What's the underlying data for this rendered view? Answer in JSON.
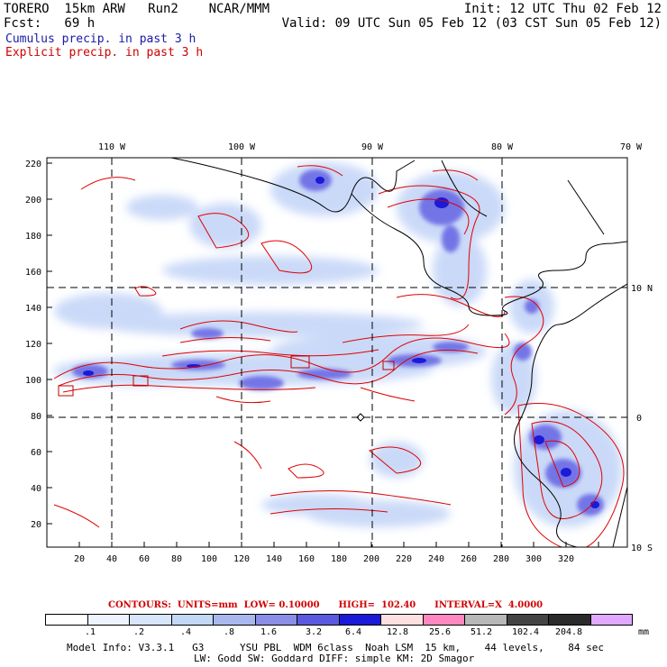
{
  "header": {
    "line1_left": "TORERO  15km ARW   Run2    NCAR/MMM",
    "line1_right": "Init: 12 UTC Thu 02 Feb 12",
    "line2_left": "Fcst:   69 h",
    "line2_right": "Valid: 09 UTC Sun 05 Feb 12 (03 CST Sun 05 Feb 12)",
    "field1": "Cumulus precip. in past 3 h",
    "field2": "Explicit precip. in past 3 h",
    "field1_color": "#1a1aa6",
    "field2_color": "#d00000"
  },
  "map": {
    "top_lon_labels": [
      "110 W",
      "100 W",
      "90 W",
      "80 W",
      "70 W"
    ],
    "right_lat_labels": [
      "10 N",
      "0",
      "10 S"
    ],
    "left_y_ticks": [
      "220",
      "200",
      "180",
      "160",
      "140",
      "120",
      "100",
      "80",
      "60",
      "40",
      "20"
    ],
    "bottom_x_ticks": [
      "20",
      "40",
      "60",
      "80",
      "100",
      "120",
      "140",
      "160",
      "180",
      "200",
      "220",
      "240",
      "260",
      "280",
      "300",
      "320"
    ]
  },
  "contours_text": "CONTOURS:  UNITS=mm  LOW= 0.10000      HIGH=  102.40      INTERVAL=X  4.0000",
  "legend": {
    "colors": [
      "#ffffff",
      "#eef4ff",
      "#d7e6fb",
      "#c3d8f5",
      "#a8b8ee",
      "#8a8ee6",
      "#5a5ae0",
      "#1a1ad8",
      "#ffe0e0",
      "#ff88c0",
      "#b8b8b8",
      "#444444",
      "#2a2a2a",
      "#e0a8ff"
    ],
    "labels": [
      ".1",
      ".2",
      ".4",
      ".8",
      "1.6",
      "3.2",
      "6.4",
      "12.8",
      "25.6",
      "51.2",
      "102.4",
      "204.8"
    ],
    "unit": "mm"
  },
  "model_info_line1": "Model Info: V3.3.1   G3      YSU PBL  WDM 6class  Noah LSM  15 km,    44 levels,    84 sec",
  "model_info_line2": "LW: Godd SW: Goddard DIFF: simple KM: 2D Smagor"
}
